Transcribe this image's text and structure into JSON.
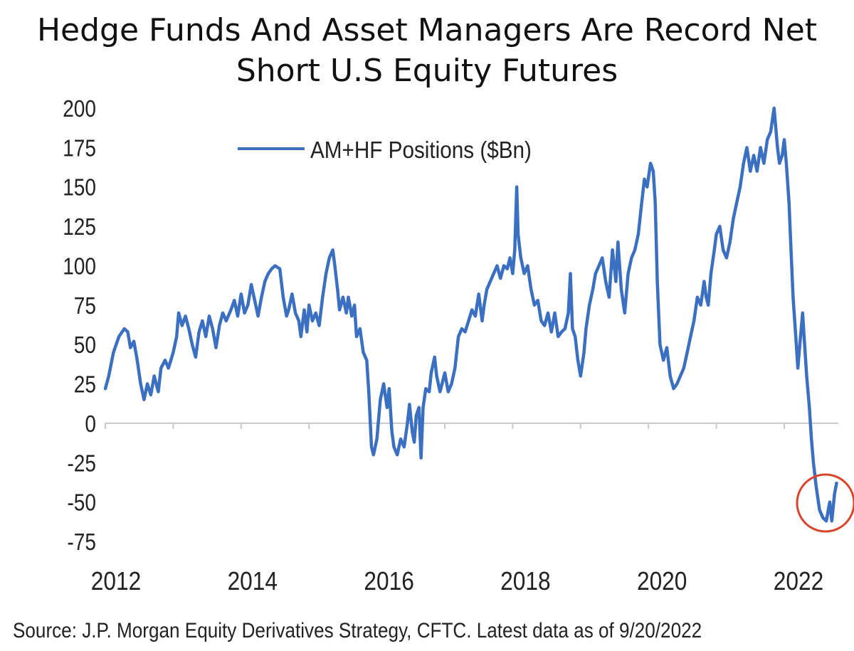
{
  "chart_data": {
    "type": "line",
    "title_lines": [
      "Hedge Funds And Asset Managers Are Record Net",
      "Short U.S Equity Futures"
    ],
    "source": "Source: J.P. Morgan Equity Derivatives Strategy, CFTC. Latest data as of 9/20/2022",
    "ylim": [
      -75,
      200
    ],
    "yticks": [
      200,
      175,
      150,
      125,
      100,
      75,
      50,
      25,
      0,
      -25,
      -50,
      -75
    ],
    "xlim": [
      2012.0,
      2022.85
    ],
    "xticks": [
      2012,
      2014,
      2016,
      2018,
      2020,
      2022
    ],
    "grid": false,
    "legend": {
      "placement": "top-left",
      "entries": [
        "AM+HF Positions ($Bn)"
      ]
    },
    "series": [
      {
        "name": "AM+HF Positions ($Bn)",
        "color": "#3a6fc2",
        "points": [
          [
            2012.0,
            22
          ],
          [
            2012.05,
            30
          ],
          [
            2012.12,
            45
          ],
          [
            2012.2,
            55
          ],
          [
            2012.28,
            60
          ],
          [
            2012.33,
            58
          ],
          [
            2012.37,
            48
          ],
          [
            2012.42,
            52
          ],
          [
            2012.47,
            40
          ],
          [
            2012.52,
            25
          ],
          [
            2012.57,
            15
          ],
          [
            2012.62,
            25
          ],
          [
            2012.67,
            18
          ],
          [
            2012.72,
            30
          ],
          [
            2012.78,
            20
          ],
          [
            2012.82,
            35
          ],
          [
            2012.88,
            40
          ],
          [
            2012.93,
            35
          ],
          [
            2013.0,
            45
          ],
          [
            2013.05,
            55
          ],
          [
            2013.08,
            70
          ],
          [
            2013.13,
            62
          ],
          [
            2013.18,
            68
          ],
          [
            2013.23,
            60
          ],
          [
            2013.28,
            50
          ],
          [
            2013.33,
            42
          ],
          [
            2013.38,
            58
          ],
          [
            2013.43,
            65
          ],
          [
            2013.48,
            55
          ],
          [
            2013.53,
            68
          ],
          [
            2013.58,
            60
          ],
          [
            2013.63,
            48
          ],
          [
            2013.68,
            62
          ],
          [
            2013.73,
            70
          ],
          [
            2013.78,
            65
          ],
          [
            2013.85,
            72
          ],
          [
            2013.9,
            78
          ],
          [
            2013.95,
            68
          ],
          [
            2014.0,
            82
          ],
          [
            2014.05,
            70
          ],
          [
            2014.1,
            75
          ],
          [
            2014.15,
            88
          ],
          [
            2014.2,
            78
          ],
          [
            2014.25,
            68
          ],
          [
            2014.3,
            80
          ],
          [
            2014.35,
            90
          ],
          [
            2014.4,
            95
          ],
          [
            2014.45,
            98
          ],
          [
            2014.5,
            100
          ],
          [
            2014.57,
            98
          ],
          [
            2014.62,
            80
          ],
          [
            2014.67,
            68
          ],
          [
            2014.7,
            72
          ],
          [
            2014.75,
            82
          ],
          [
            2014.8,
            70
          ],
          [
            2014.85,
            65
          ],
          [
            2014.88,
            55
          ],
          [
            2014.93,
            72
          ],
          [
            2014.97,
            58
          ],
          [
            2015.0,
            75
          ],
          [
            2015.05,
            65
          ],
          [
            2015.1,
            70
          ],
          [
            2015.15,
            62
          ],
          [
            2015.2,
            80
          ],
          [
            2015.25,
            95
          ],
          [
            2015.3,
            105
          ],
          [
            2015.35,
            110
          ],
          [
            2015.38,
            100
          ],
          [
            2015.42,
            85
          ],
          [
            2015.45,
            72
          ],
          [
            2015.5,
            80
          ],
          [
            2015.55,
            70
          ],
          [
            2015.58,
            80
          ],
          [
            2015.63,
            68
          ],
          [
            2015.67,
            75
          ],
          [
            2015.7,
            55
          ],
          [
            2015.75,
            60
          ],
          [
            2015.8,
            45
          ],
          [
            2015.85,
            40
          ],
          [
            2015.88,
            20
          ],
          [
            2015.92,
            -15
          ],
          [
            2015.95,
            -20
          ],
          [
            2016.0,
            -10
          ],
          [
            2016.05,
            15
          ],
          [
            2016.1,
            25
          ],
          [
            2016.15,
            10
          ],
          [
            2016.18,
            22
          ],
          [
            2016.22,
            -5
          ],
          [
            2016.25,
            -15
          ],
          [
            2016.3,
            -20
          ],
          [
            2016.35,
            -10
          ],
          [
            2016.4,
            -15
          ],
          [
            2016.45,
            0
          ],
          [
            2016.48,
            12
          ],
          [
            2016.52,
            -5
          ],
          [
            2016.55,
            -12
          ],
          [
            2016.58,
            5
          ],
          [
            2016.62,
            10
          ],
          [
            2016.65,
            -22
          ],
          [
            2016.68,
            10
          ],
          [
            2016.72,
            22
          ],
          [
            2016.77,
            20
          ],
          [
            2016.8,
            32
          ],
          [
            2016.85,
            42
          ],
          [
            2016.88,
            30
          ],
          [
            2016.93,
            20
          ],
          [
            2016.96,
            25
          ],
          [
            2017.0,
            32
          ],
          [
            2017.05,
            20
          ],
          [
            2017.1,
            25
          ],
          [
            2017.15,
            35
          ],
          [
            2017.2,
            55
          ],
          [
            2017.25,
            60
          ],
          [
            2017.3,
            58
          ],
          [
            2017.35,
            65
          ],
          [
            2017.4,
            72
          ],
          [
            2017.45,
            68
          ],
          [
            2017.5,
            82
          ],
          [
            2017.55,
            65
          ],
          [
            2017.58,
            75
          ],
          [
            2017.62,
            85
          ],
          [
            2017.67,
            90
          ],
          [
            2017.72,
            95
          ],
          [
            2017.77,
            100
          ],
          [
            2017.82,
            92
          ],
          [
            2017.87,
            100
          ],
          [
            2017.92,
            98
          ],
          [
            2017.96,
            105
          ],
          [
            2018.0,
            95
          ],
          [
            2018.03,
            110
          ],
          [
            2018.06,
            150
          ],
          [
            2018.08,
            120
          ],
          [
            2018.12,
            105
          ],
          [
            2018.17,
            95
          ],
          [
            2018.22,
            100
          ],
          [
            2018.27,
            85
          ],
          [
            2018.32,
            75
          ],
          [
            2018.37,
            78
          ],
          [
            2018.42,
            65
          ],
          [
            2018.47,
            62
          ],
          [
            2018.52,
            70
          ],
          [
            2018.57,
            58
          ],
          [
            2018.62,
            70
          ],
          [
            2018.67,
            55
          ],
          [
            2018.72,
            58
          ],
          [
            2018.77,
            60
          ],
          [
            2018.82,
            70
          ],
          [
            2018.85,
            95
          ],
          [
            2018.88,
            60
          ],
          [
            2018.92,
            55
          ],
          [
            2018.96,
            40
          ],
          [
            2019.0,
            30
          ],
          [
            2019.05,
            45
          ],
          [
            2019.08,
            60
          ],
          [
            2019.13,
            75
          ],
          [
            2019.18,
            85
          ],
          [
            2019.22,
            95
          ],
          [
            2019.27,
            100
          ],
          [
            2019.32,
            105
          ],
          [
            2019.37,
            90
          ],
          [
            2019.42,
            80
          ],
          [
            2019.47,
            110
          ],
          [
            2019.52,
            90
          ],
          [
            2019.55,
            115
          ],
          [
            2019.6,
            85
          ],
          [
            2019.65,
            70
          ],
          [
            2019.7,
            95
          ],
          [
            2019.75,
            105
          ],
          [
            2019.8,
            110
          ],
          [
            2019.85,
            120
          ],
          [
            2019.9,
            140
          ],
          [
            2019.94,
            155
          ],
          [
            2019.98,
            150
          ],
          [
            2020.03,
            165
          ],
          [
            2020.07,
            160
          ],
          [
            2020.1,
            140
          ],
          [
            2020.13,
            90
          ],
          [
            2020.17,
            50
          ],
          [
            2020.22,
            40
          ],
          [
            2020.27,
            48
          ],
          [
            2020.32,
            30
          ],
          [
            2020.37,
            22
          ],
          [
            2020.42,
            25
          ],
          [
            2020.47,
            30
          ],
          [
            2020.52,
            35
          ],
          [
            2020.57,
            45
          ],
          [
            2020.62,
            55
          ],
          [
            2020.67,
            65
          ],
          [
            2020.72,
            80
          ],
          [
            2020.77,
            75
          ],
          [
            2020.82,
            90
          ],
          [
            2020.85,
            80
          ],
          [
            2020.88,
            75
          ],
          [
            2020.92,
            95
          ],
          [
            2020.97,
            110
          ],
          [
            2021.0,
            120
          ],
          [
            2021.05,
            125
          ],
          [
            2021.1,
            110
          ],
          [
            2021.15,
            105
          ],
          [
            2021.2,
            115
          ],
          [
            2021.25,
            130
          ],
          [
            2021.3,
            140
          ],
          [
            2021.35,
            150
          ],
          [
            2021.4,
            165
          ],
          [
            2021.45,
            175
          ],
          [
            2021.5,
            160
          ],
          [
            2021.55,
            170
          ],
          [
            2021.6,
            160
          ],
          [
            2021.65,
            175
          ],
          [
            2021.7,
            165
          ],
          [
            2021.75,
            180
          ],
          [
            2021.8,
            185
          ],
          [
            2021.85,
            200
          ],
          [
            2021.9,
            175
          ],
          [
            2021.93,
            165
          ],
          [
            2021.97,
            170
          ],
          [
            2022.0,
            180
          ],
          [
            2022.03,
            165
          ],
          [
            2022.07,
            140
          ],
          [
            2022.1,
            110
          ],
          [
            2022.13,
            80
          ],
          [
            2022.17,
            55
          ],
          [
            2022.2,
            35
          ],
          [
            2022.23,
            50
          ],
          [
            2022.27,
            70
          ],
          [
            2022.3,
            50
          ],
          [
            2022.33,
            30
          ],
          [
            2022.37,
            10
          ],
          [
            2022.4,
            -10
          ],
          [
            2022.43,
            -25
          ],
          [
            2022.47,
            -40
          ],
          [
            2022.52,
            -55
          ],
          [
            2022.57,
            -60
          ],
          [
            2022.62,
            -62
          ],
          [
            2022.67,
            -50
          ],
          [
            2022.7,
            -62
          ],
          [
            2022.74,
            -45
          ],
          [
            2022.77,
            -38
          ]
        ]
      }
    ],
    "annotation": {
      "shape": "circle",
      "color": "#d9452b",
      "target": "latest record net short values"
    }
  }
}
